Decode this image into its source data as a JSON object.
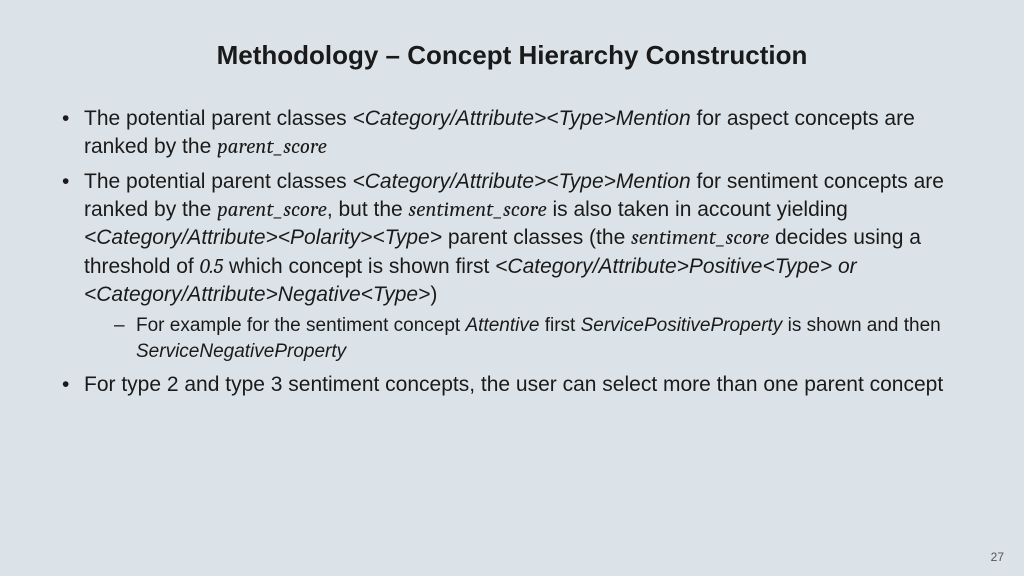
{
  "slide": {
    "title": "Methodology – Concept Hierarchy Construction",
    "title_fontsize": 26,
    "body_fontsize": 21,
    "sub_fontsize": 19,
    "line_height": 1.35,
    "background_color": "#dce3e8",
    "text_color": "#1a1a1a",
    "bullets": {
      "b1": {
        "t1": "The potential parent classes ",
        "t2": "<Category/Attribute><Type>Mention",
        "t3": " for aspect concepts are ranked by the ",
        "t4": "parent_score"
      },
      "b2": {
        "t1": "The potential parent classes ",
        "t2": "<Category/Attribute><Type>Mention",
        "t3": " for sentiment concepts are ranked by the ",
        "t4": "parent_score",
        "t5": ", but the ",
        "t6": "sentiment_score",
        "t7": " is also taken in account yielding ",
        "t8": "<Category/Attribute><Polarity><Type>",
        "t9": " parent classes (the ",
        "t10": "sentiment_score",
        "t11": " decides using a threshold of ",
        "t12": "0.5",
        "t13": " which concept is shown first ",
        "t14": "<Category/Attribute>Positive<Type> or <Category/Attribute>Negative<Type>",
        "t15": ")"
      },
      "s1": {
        "t1": "For example for the sentiment concept  ",
        "t2": "Attentive",
        "t3": " first ",
        "t4": "ServicePositiveProperty",
        "t5": " is shown and then ",
        "t6": "ServiceNegativeProperty"
      },
      "b3": {
        "t1": "For type 2 and type 3 sentiment concepts, the user can select more than one parent concept"
      }
    },
    "page_number": "27"
  }
}
